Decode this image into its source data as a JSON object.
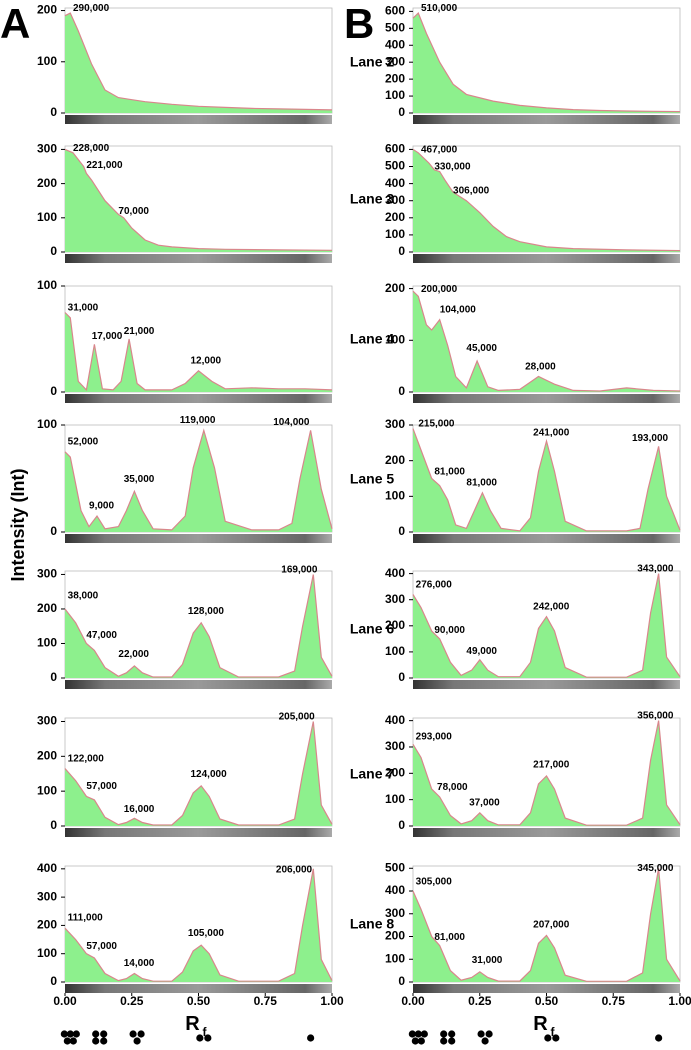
{
  "panel_labels": [
    "A",
    "B"
  ],
  "y_axis_label": "Intensity (Int)",
  "x_axis_label": {
    "text": "R",
    "sub": "f"
  },
  "lanes": [
    "Lane 2",
    "Lane 3",
    "Lane 4",
    "Lane 5",
    "Lane 6",
    "Lane 7",
    "Lane 8"
  ],
  "chart_data": [
    {
      "type": "line",
      "color": "#d9868c",
      "fill_color": "#8df08d",
      "xlim": [
        0,
        1
      ],
      "ylim": [
        0,
        205
      ],
      "yticks": [
        0,
        100,
        200
      ],
      "x": [
        0,
        0.02,
        0.05,
        0.1,
        0.15,
        0.2,
        0.3,
        0.4,
        0.5,
        0.6,
        0.7,
        0.8,
        0.9,
        1.0
      ],
      "values": [
        190,
        195,
        160,
        95,
        45,
        30,
        22,
        17,
        13,
        11,
        9,
        8,
        7,
        6
      ],
      "annotations": [
        {
          "text": "290,000",
          "x": 0.03,
          "y": 195
        }
      ]
    },
    {
      "type": "line",
      "color": "#d9868c",
      "fill_color": "#8df08d",
      "xlim": [
        0,
        1
      ],
      "ylim": [
        0,
        620
      ],
      "yticks": [
        0,
        100,
        200,
        300,
        400,
        500,
        600
      ],
      "x": [
        0,
        0.02,
        0.05,
        0.1,
        0.15,
        0.2,
        0.3,
        0.4,
        0.5,
        0.6,
        0.7,
        0.8,
        0.9,
        1.0
      ],
      "values": [
        560,
        590,
        470,
        300,
        170,
        110,
        70,
        45,
        30,
        20,
        15,
        12,
        10,
        8
      ],
      "annotations": [
        {
          "text": "510,000",
          "x": 0.03,
          "y": 590
        }
      ]
    },
    {
      "type": "line",
      "color": "#d9868c",
      "fill_color": "#8df08d",
      "xlim": [
        0,
        1
      ],
      "ylim": [
        0,
        310
      ],
      "yticks": [
        0,
        100,
        200,
        300
      ],
      "x": [
        0,
        0.03,
        0.07,
        0.08,
        0.1,
        0.15,
        0.2,
        0.22,
        0.25,
        0.3,
        0.35,
        0.4,
        0.5,
        0.6,
        0.8,
        1.0
      ],
      "values": [
        300,
        290,
        250,
        230,
        210,
        150,
        110,
        100,
        70,
        35,
        20,
        15,
        10,
        8,
        6,
        5
      ],
      "annotations": [
        {
          "text": "228,000",
          "x": 0.03,
          "y": 290
        },
        {
          "text": "221,000",
          "x": 0.08,
          "y": 240
        },
        {
          "text": "70,000",
          "x": 0.2,
          "y": 105
        }
      ]
    },
    {
      "type": "line",
      "color": "#d9868c",
      "fill_color": "#8df08d",
      "xlim": [
        0,
        1
      ],
      "ylim": [
        0,
        620
      ],
      "yticks": [
        0,
        100,
        200,
        300,
        400,
        500,
        600
      ],
      "x": [
        0,
        0.02,
        0.06,
        0.08,
        0.1,
        0.12,
        0.15,
        0.2,
        0.25,
        0.3,
        0.35,
        0.4,
        0.5,
        0.6,
        0.8,
        1.0
      ],
      "values": [
        600,
        580,
        520,
        480,
        470,
        420,
        350,
        300,
        230,
        150,
        90,
        60,
        30,
        20,
        12,
        8
      ],
      "annotations": [
        {
          "text": "467,000",
          "x": 0.03,
          "y": 570
        },
        {
          "text": "330,000",
          "x": 0.08,
          "y": 470
        },
        {
          "text": "306,000",
          "x": 0.15,
          "y": 330
        }
      ]
    },
    {
      "type": "line",
      "color": "#d9868c",
      "fill_color": "#8df08d",
      "xlim": [
        0,
        1
      ],
      "ylim": [
        0,
        100
      ],
      "yticks": [
        0,
        100
      ],
      "x": [
        0,
        0.02,
        0.05,
        0.08,
        0.11,
        0.14,
        0.18,
        0.21,
        0.24,
        0.27,
        0.3,
        0.4,
        0.45,
        0.5,
        0.55,
        0.6,
        0.7,
        0.8,
        0.9,
        1.0
      ],
      "values": [
        75,
        70,
        10,
        2,
        45,
        3,
        2,
        10,
        50,
        8,
        2,
        2,
        8,
        20,
        10,
        3,
        4,
        3,
        3,
        2
      ],
      "annotations": [
        {
          "text": "31,000",
          "x": 0.01,
          "y": 75
        },
        {
          "text": "17,000",
          "x": 0.1,
          "y": 48
        },
        {
          "text": "21,000",
          "x": 0.22,
          "y": 53
        },
        {
          "text": "12,000",
          "x": 0.47,
          "y": 25
        }
      ]
    },
    {
      "type": "line",
      "color": "#d9868c",
      "fill_color": "#8df08d",
      "xlim": [
        0,
        1
      ],
      "ylim": [
        0,
        205
      ],
      "yticks": [
        0,
        100,
        200
      ],
      "x": [
        0,
        0.02,
        0.05,
        0.07,
        0.1,
        0.13,
        0.16,
        0.2,
        0.24,
        0.28,
        0.32,
        0.4,
        0.47,
        0.53,
        0.6,
        0.7,
        0.8,
        0.9,
        1.0
      ],
      "values": [
        195,
        185,
        130,
        120,
        140,
        90,
        30,
        8,
        60,
        10,
        3,
        5,
        30,
        15,
        3,
        2,
        8,
        3,
        2
      ],
      "annotations": [
        {
          "text": "200,000",
          "x": 0.03,
          "y": 190
        },
        {
          "text": "104,000",
          "x": 0.1,
          "y": 150
        },
        {
          "text": "45,000",
          "x": 0.2,
          "y": 75
        },
        {
          "text": "28,000",
          "x": 0.42,
          "y": 40
        }
      ]
    },
    {
      "type": "line",
      "color": "#d9868c",
      "fill_color": "#8df08d",
      "xlim": [
        0,
        1
      ],
      "ylim": [
        0,
        100
      ],
      "yticks": [
        0,
        100
      ],
      "x": [
        0,
        0.02,
        0.06,
        0.09,
        0.12,
        0.15,
        0.2,
        0.23,
        0.26,
        0.29,
        0.33,
        0.4,
        0.45,
        0.48,
        0.52,
        0.56,
        0.6,
        0.7,
        0.8,
        0.85,
        0.88,
        0.92,
        0.96,
        1.0
      ],
      "values": [
        75,
        70,
        20,
        5,
        15,
        3,
        5,
        20,
        38,
        20,
        3,
        2,
        15,
        60,
        95,
        60,
        10,
        2,
        2,
        8,
        50,
        95,
        40,
        3
      ],
      "annotations": [
        {
          "text": "52,000",
          "x": 0.01,
          "y": 80
        },
        {
          "text": "9,000",
          "x": 0.09,
          "y": 20
        },
        {
          "text": "35,000",
          "x": 0.22,
          "y": 45
        },
        {
          "text": "119,000",
          "x": 0.43,
          "y": 100
        },
        {
          "text": "104,000",
          "x": 0.78,
          "y": 98
        }
      ]
    },
    {
      "type": "line",
      "color": "#d9868c",
      "fill_color": "#8df08d",
      "xlim": [
        0,
        1
      ],
      "ylim": [
        0,
        300
      ],
      "yticks": [
        0,
        100,
        200,
        300
      ],
      "x": [
        0,
        0.03,
        0.07,
        0.1,
        0.13,
        0.16,
        0.2,
        0.23,
        0.26,
        0.29,
        0.33,
        0.4,
        0.44,
        0.47,
        0.5,
        0.53,
        0.57,
        0.65,
        0.8,
        0.85,
        0.88,
        0.92,
        0.95,
        1.0
      ],
      "values": [
        290,
        230,
        150,
        130,
        90,
        20,
        10,
        60,
        110,
        60,
        10,
        3,
        40,
        170,
        255,
        170,
        30,
        3,
        3,
        10,
        120,
        240,
        100,
        5
      ],
      "annotations": [
        {
          "text": "215,000",
          "x": 0.02,
          "y": 290
        },
        {
          "text": "81,000",
          "x": 0.08,
          "y": 155
        },
        {
          "text": "81,000",
          "x": 0.2,
          "y": 125
        },
        {
          "text": "241,000",
          "x": 0.45,
          "y": 265
        },
        {
          "text": "193,000",
          "x": 0.82,
          "y": 250
        }
      ]
    },
    {
      "type": "line",
      "color": "#d9868c",
      "fill_color": "#8df08d",
      "xlim": [
        0,
        1
      ],
      "ylim": [
        0,
        310
      ],
      "yticks": [
        0,
        100,
        200,
        300
      ],
      "x": [
        0,
        0.04,
        0.08,
        0.11,
        0.15,
        0.2,
        0.23,
        0.26,
        0.29,
        0.33,
        0.4,
        0.44,
        0.48,
        0.51,
        0.54,
        0.58,
        0.65,
        0.8,
        0.86,
        0.89,
        0.93,
        0.96,
        1.0
      ],
      "values": [
        200,
        160,
        100,
        80,
        30,
        5,
        15,
        35,
        15,
        3,
        3,
        40,
        130,
        160,
        120,
        30,
        3,
        3,
        20,
        150,
        300,
        60,
        5
      ],
      "annotations": [
        {
          "text": "38,000",
          "x": 0.01,
          "y": 225
        },
        {
          "text": "47,000",
          "x": 0.08,
          "y": 110
        },
        {
          "text": "22,000",
          "x": 0.2,
          "y": 55
        },
        {
          "text": "128,000",
          "x": 0.46,
          "y": 180
        },
        {
          "text": "169,000",
          "x": 0.81,
          "y": 300
        }
      ]
    },
    {
      "type": "line",
      "color": "#d9868c",
      "fill_color": "#8df08d",
      "xlim": [
        0,
        1
      ],
      "ylim": [
        0,
        410
      ],
      "yticks": [
        0,
        100,
        200,
        300,
        400
      ],
      "x": [
        0,
        0.03,
        0.07,
        0.1,
        0.14,
        0.18,
        0.22,
        0.25,
        0.28,
        0.32,
        0.4,
        0.44,
        0.47,
        0.5,
        0.53,
        0.57,
        0.65,
        0.8,
        0.86,
        0.89,
        0.92,
        0.95,
        1.0
      ],
      "values": [
        320,
        270,
        180,
        150,
        60,
        10,
        30,
        70,
        30,
        5,
        5,
        60,
        190,
        235,
        180,
        40,
        3,
        3,
        30,
        250,
        400,
        80,
        5
      ],
      "annotations": [
        {
          "text": "276,000",
          "x": 0.01,
          "y": 340
        },
        {
          "text": "90,000",
          "x": 0.08,
          "y": 165
        },
        {
          "text": "49,000",
          "x": 0.2,
          "y": 85
        },
        {
          "text": "242,000",
          "x": 0.45,
          "y": 255
        },
        {
          "text": "343,000",
          "x": 0.84,
          "y": 400
        }
      ]
    },
    {
      "type": "line",
      "color": "#d9868c",
      "fill_color": "#8df08d",
      "xlim": [
        0,
        1
      ],
      "ylim": [
        0,
        310
      ],
      "yticks": [
        0,
        100,
        200,
        300
      ],
      "x": [
        0,
        0.04,
        0.08,
        0.11,
        0.15,
        0.2,
        0.23,
        0.26,
        0.29,
        0.33,
        0.4,
        0.44,
        0.48,
        0.51,
        0.54,
        0.58,
        0.65,
        0.8,
        0.86,
        0.89,
        0.93,
        0.96,
        1.0
      ],
      "values": [
        165,
        130,
        85,
        75,
        25,
        4,
        10,
        22,
        10,
        3,
        3,
        30,
        95,
        115,
        85,
        20,
        3,
        3,
        20,
        150,
        300,
        60,
        5
      ],
      "annotations": [
        {
          "text": "122,000",
          "x": 0.01,
          "y": 180
        },
        {
          "text": "57,000",
          "x": 0.08,
          "y": 100
        },
        {
          "text": "16,000",
          "x": 0.22,
          "y": 35
        },
        {
          "text": "124,000",
          "x": 0.47,
          "y": 135
        },
        {
          "text": "205,000",
          "x": 0.8,
          "y": 300
        }
      ]
    },
    {
      "type": "line",
      "color": "#d9868c",
      "fill_color": "#8df08d",
      "xlim": [
        0,
        1
      ],
      "ylim": [
        0,
        410
      ],
      "yticks": [
        0,
        100,
        200,
        300,
        400
      ],
      "x": [
        0,
        0.03,
        0.07,
        0.1,
        0.14,
        0.18,
        0.22,
        0.25,
        0.28,
        0.32,
        0.4,
        0.44,
        0.47,
        0.5,
        0.53,
        0.57,
        0.65,
        0.8,
        0.86,
        0.89,
        0.92,
        0.95,
        1.0
      ],
      "values": [
        310,
        260,
        140,
        110,
        40,
        8,
        20,
        50,
        20,
        4,
        4,
        50,
        160,
        190,
        140,
        30,
        3,
        3,
        30,
        250,
        400,
        80,
        5
      ],
      "annotations": [
        {
          "text": "293,000",
          "x": 0.01,
          "y": 320
        },
        {
          "text": "78,000",
          "x": 0.09,
          "y": 130
        },
        {
          "text": "37,000",
          "x": 0.21,
          "y": 70
        },
        {
          "text": "217,000",
          "x": 0.45,
          "y": 215
        },
        {
          "text": "356,000",
          "x": 0.84,
          "y": 400
        }
      ]
    },
    {
      "type": "line",
      "color": "#d9868c",
      "fill_color": "#8df08d",
      "xlim": [
        0,
        1
      ],
      "ylim": [
        0,
        410
      ],
      "yticks": [
        0,
        100,
        200,
        300,
        400
      ],
      "xticks": [
        {
          "value": 0,
          "label": "0.00"
        },
        {
          "value": 0.25,
          "label": "0.25"
        },
        {
          "value": 0.5,
          "label": "0.50"
        },
        {
          "value": 0.75,
          "label": "0.75"
        },
        {
          "value": 1,
          "label": "1.00"
        }
      ],
      "x": [
        0,
        0.04,
        0.08,
        0.11,
        0.15,
        0.2,
        0.23,
        0.26,
        0.29,
        0.33,
        0.4,
        0.44,
        0.48,
        0.51,
        0.54,
        0.58,
        0.65,
        0.8,
        0.86,
        0.89,
        0.93,
        0.96,
        1.0
      ],
      "values": [
        190,
        150,
        100,
        85,
        30,
        5,
        12,
        30,
        12,
        3,
        3,
        35,
        110,
        130,
        100,
        25,
        3,
        3,
        30,
        200,
        400,
        80,
        5
      ],
      "annotations": [
        {
          "text": "111,000",
          "x": 0.01,
          "y": 210
        },
        {
          "text": "57,000",
          "x": 0.08,
          "y": 110
        },
        {
          "text": "14,000",
          "x": 0.22,
          "y": 50
        },
        {
          "text": "105,000",
          "x": 0.46,
          "y": 155
        },
        {
          "text": "206,000",
          "x": 0.79,
          "y": 380
        }
      ]
    },
    {
      "type": "line",
      "color": "#d9868c",
      "fill_color": "#8df08d",
      "xlim": [
        0,
        1
      ],
      "ylim": [
        0,
        510
      ],
      "yticks": [
        0,
        100,
        200,
        300,
        400,
        500
      ],
      "xticks": [
        {
          "value": 0,
          "label": "0.00"
        },
        {
          "value": 0.25,
          "label": "0.25"
        },
        {
          "value": 0.5,
          "label": "0.50"
        },
        {
          "value": 0.75,
          "label": "0.75"
        },
        {
          "value": 1,
          "label": "1.00"
        }
      ],
      "x": [
        0,
        0.03,
        0.07,
        0.1,
        0.14,
        0.18,
        0.22,
        0.25,
        0.28,
        0.32,
        0.4,
        0.44,
        0.47,
        0.5,
        0.53,
        0.57,
        0.65,
        0.8,
        0.86,
        0.89,
        0.92,
        0.95,
        1.0
      ],
      "values": [
        400,
        320,
        200,
        160,
        50,
        8,
        20,
        45,
        20,
        4,
        4,
        50,
        170,
        205,
        150,
        30,
        3,
        3,
        40,
        300,
        500,
        100,
        5
      ],
      "annotations": [
        {
          "text": "305,000",
          "x": 0.01,
          "y": 420
        },
        {
          "text": "81,000",
          "x": 0.08,
          "y": 175
        },
        {
          "text": "31,000",
          "x": 0.22,
          "y": 75
        },
        {
          "text": "207,000",
          "x": 0.45,
          "y": 230
        },
        {
          "text": "345,000",
          "x": 0.84,
          "y": 480
        }
      ]
    }
  ]
}
